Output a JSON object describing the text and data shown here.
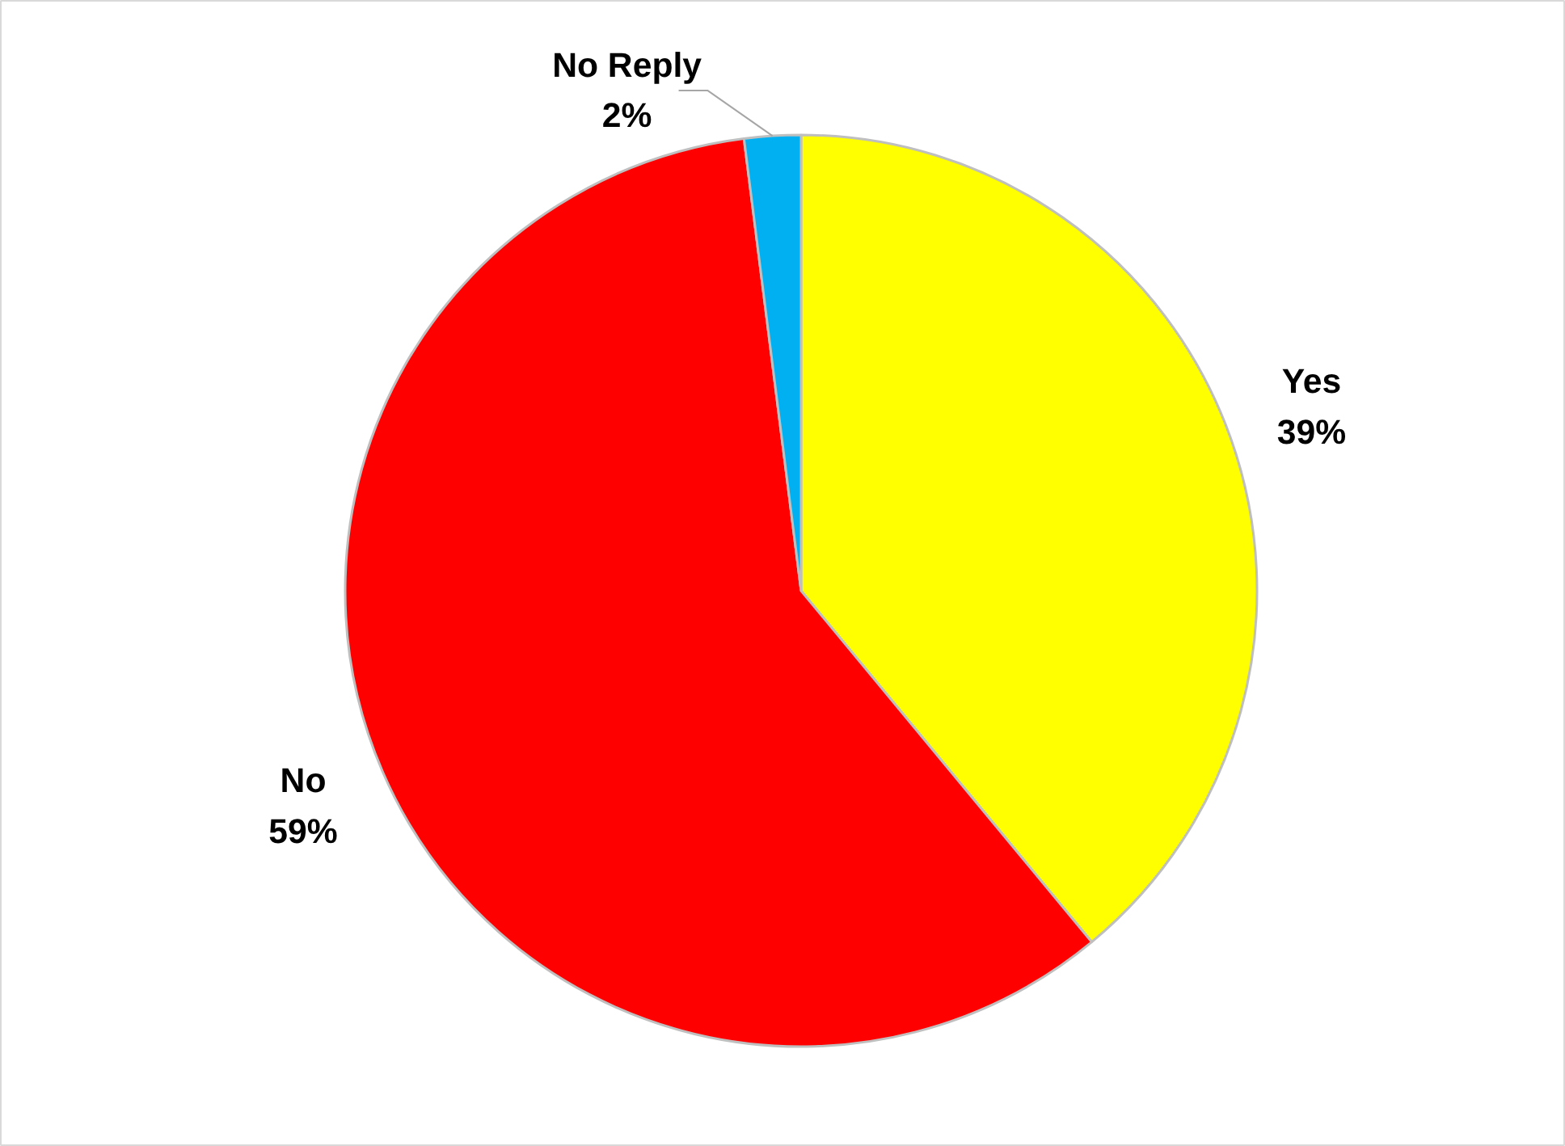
{
  "chart_data": {
    "type": "pie",
    "categories": [
      "Yes",
      "No",
      "No Reply"
    ],
    "values": [
      39,
      59,
      2
    ],
    "colors": [
      "#ffff00",
      "#ff0000",
      "#00b0f0"
    ],
    "value_labels": [
      "39%",
      "59%",
      "2%"
    ]
  }
}
